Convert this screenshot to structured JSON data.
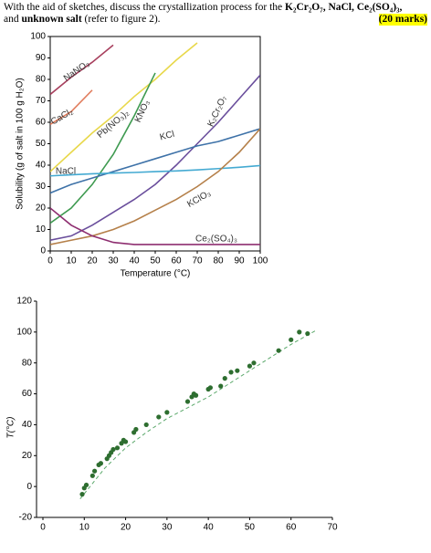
{
  "header": {
    "parts": [
      "With the aid of sketches, discuss the crystallization process for the ",
      "K₂Cr₂O₇, NaCl, Ce₂(SO₄)₃,",
      " and ",
      "unknown salt",
      " (refer to figure 2)."
    ],
    "marks": "(20 marks)"
  },
  "chart_data": [
    {
      "type": "line",
      "x_label": "Temperature (°C)",
      "y_label": "Solubility (g of salt in 100 g H₂O)",
      "x": [
        0,
        10,
        20,
        30,
        40,
        50,
        60,
        70,
        80,
        90,
        100
      ],
      "xlim": [
        0,
        100
      ],
      "ylim": [
        0,
        100
      ],
      "xticks": [
        0,
        10,
        20,
        30,
        40,
        50,
        60,
        70,
        80,
        90,
        100
      ],
      "yticks": [
        0,
        10,
        20,
        30,
        40,
        50,
        60,
        70,
        80,
        90,
        100
      ],
      "series": [
        {
          "name": "NaNO₃",
          "color": "#a8405e",
          "values": [
            73,
            81,
            88,
            96,
            null,
            null,
            null,
            null,
            null,
            null,
            null
          ]
        },
        {
          "name": "CaCl₂",
          "color": "#e07a5a",
          "values": [
            59,
            65,
            75,
            null,
            null,
            null,
            null,
            null,
            null,
            null,
            null
          ]
        },
        {
          "name": "Pb(NO₃)₂",
          "color": "#e8d84a",
          "values": [
            37,
            46,
            55,
            63,
            72,
            80,
            89,
            97,
            null,
            null,
            null
          ]
        },
        {
          "name": "KNO₃",
          "color": "#3e9a50",
          "values": [
            13,
            20,
            31,
            45,
            63,
            83,
            null,
            null,
            null,
            null,
            null
          ]
        },
        {
          "name": "K₂Cr₂O₇",
          "color": "#6a4e9c",
          "values": [
            5,
            7,
            12,
            18,
            24,
            31,
            40,
            50,
            60,
            71,
            82
          ]
        },
        {
          "name": "KCl",
          "color": "#3e72a8",
          "values": [
            27,
            31,
            34,
            37,
            40,
            43,
            46,
            49,
            51,
            54,
            57
          ]
        },
        {
          "name": "NaCl",
          "color": "#44aad2",
          "values": [
            35,
            35.5,
            36,
            36.3,
            36.6,
            37,
            37.3,
            37.8,
            38.4,
            39,
            39.8
          ]
        },
        {
          "name": "KClO₃",
          "color": "#b5804a",
          "values": [
            3,
            5,
            7,
            10,
            14,
            19,
            24,
            30,
            37,
            46,
            57
          ]
        },
        {
          "name": "Ce₂(SO₄)₃",
          "color": "#8e2e70",
          "values": [
            20,
            12,
            7,
            4,
            3,
            3,
            3,
            3,
            3,
            3,
            3
          ]
        }
      ]
    },
    {
      "type": "scatter",
      "y_label": "T(°C)",
      "color": "#2e6e30",
      "line_color": "#5aa86a",
      "x": [
        9.5,
        10,
        10.5,
        12,
        12.5,
        13.5,
        14,
        15.5,
        16,
        16.5,
        17,
        18,
        19,
        19.5,
        20,
        22,
        22.5,
        25,
        28,
        30,
        35,
        36,
        36.5,
        37,
        40,
        40.5,
        43,
        44,
        45.5,
        47,
        50,
        51,
        57,
        60,
        62,
        64
      ],
      "y": [
        -5,
        -1,
        1,
        7,
        10,
        14,
        15,
        18,
        20,
        22,
        24,
        25,
        28,
        30,
        29,
        35,
        37,
        40,
        45,
        48,
        55,
        58,
        60,
        59,
        63,
        64,
        65,
        70,
        74,
        75,
        78,
        80,
        88,
        95,
        100,
        99
      ],
      "fit": {
        "x": [
          9,
          15,
          20,
          25,
          30,
          40,
          50,
          60,
          66
        ],
        "y": [
          -8,
          12,
          25,
          35,
          44,
          58,
          75,
          92,
          101
        ]
      },
      "xlim": [
        0,
        70
      ],
      "ylim": [
        -20,
        120
      ],
      "xticks": [
        0,
        10,
        20,
        30,
        40,
        50,
        60,
        70
      ],
      "yticks": [
        -20,
        0,
        20,
        40,
        60,
        80,
        100,
        120
      ]
    }
  ]
}
